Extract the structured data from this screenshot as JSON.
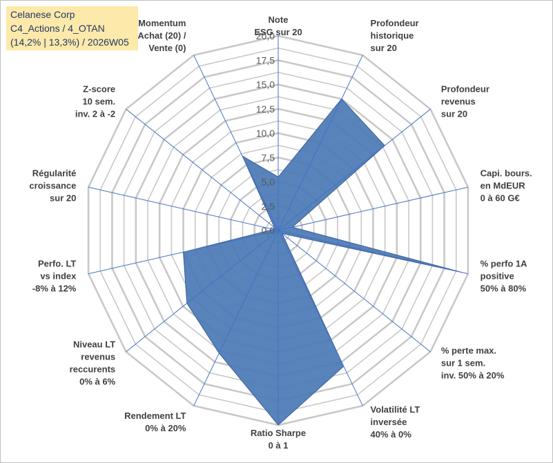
{
  "info_box": {
    "line1": "Celanese Corp",
    "line2": "C4_Actions / 4_OTAN",
    "line3": "(14,2% | 13,3%) / 2026W05"
  },
  "chart_data": {
    "type": "radar",
    "title": "",
    "r_range": [
      0,
      20
    ],
    "r_ticks": [
      "0,0",
      "2,5",
      "5,0",
      "7,5",
      "10,0",
      "12,5",
      "15,0",
      "17,5",
      "20,0"
    ],
    "grid": true,
    "axes": [
      {
        "label": [
          "Note",
          "ESG sur 20"
        ],
        "value": 5.5
      },
      {
        "label": [
          "Profondeur",
          "historique",
          "sur 20"
        ],
        "value": 15.0
      },
      {
        "label": [
          "Profondeur",
          "revenus",
          "sur 20"
        ],
        "value": 14.0
      },
      {
        "label": [
          "Capi. bours.",
          "en MdEUR",
          "0 à 60 G€"
        ],
        "value": 1.5
      },
      {
        "label": [
          "% perfo 1A",
          "positive",
          "50% à 80%"
        ],
        "value": 19.5
      },
      {
        "label": [
          "% perte max.",
          "sur 1 sem.",
          "inv. 50% à 20%"
        ],
        "value": 0.5
      },
      {
        "label": [
          "Volatilité LT",
          "inversée",
          "40% à 0%"
        ],
        "value": 15.5
      },
      {
        "label": [
          "Ratio Sharpe",
          "0 à 1"
        ],
        "value": 20.0
      },
      {
        "label": [
          "Rendement LT",
          "0% à 20%"
        ],
        "value": 14.0
      },
      {
        "label": [
          "Niveau LT",
          "revenus",
          "reccurents",
          "0% à 6%"
        ],
        "value": 12.0
      },
      {
        "label": [
          "Perfo. LT",
          "vs index",
          "-8% à 12%"
        ],
        "value": 10.0
      },
      {
        "label": [
          "Régularité",
          "croissance",
          "sur 20"
        ],
        "value": 0.5
      },
      {
        "label": [
          "Z-score",
          "10 sem.",
          "inv. 2 à -2"
        ],
        "value": 0.5
      },
      {
        "label": [
          "Momentum",
          "Achat (20) /",
          "Vente (0)"
        ],
        "value": 8.5
      }
    ],
    "series": [
      {
        "values": [
          5.5,
          15.0,
          14.0,
          1.5,
          19.5,
          0.5,
          15.5,
          20.0,
          14.0,
          12.0,
          10.0,
          0.5,
          0.5,
          8.5
        ]
      }
    ],
    "colors": {
      "fill": "#4a78b5",
      "stroke": "#3a5f95",
      "grid": "#c8c8c8",
      "spoke": "#4472c4"
    }
  }
}
